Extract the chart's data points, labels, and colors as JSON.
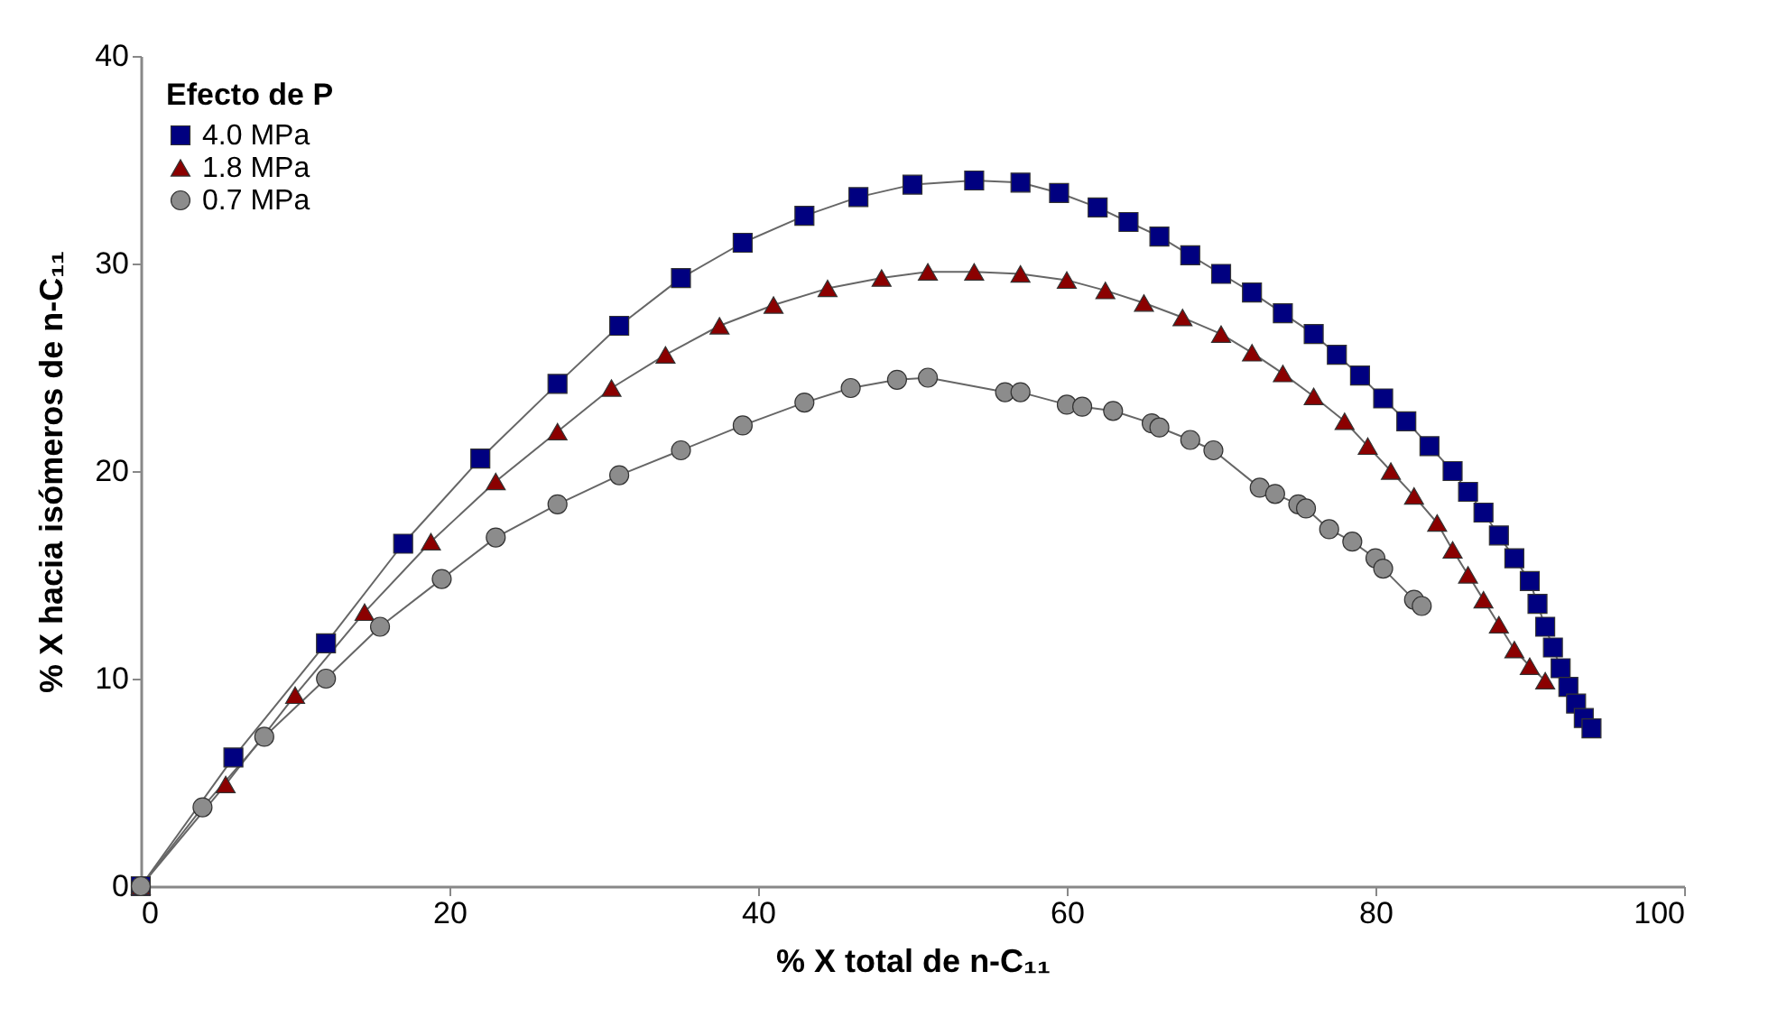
{
  "chart_data": {
    "type": "line",
    "xlabel": "% X total de n-C₁₁",
    "ylabel": "% X hacia isómeros de n-C₁₁",
    "legend_title": "Efecto de P",
    "legend": "top left",
    "grid": false,
    "xlim": [
      0,
      100
    ],
    "xticks": [
      0,
      20,
      40,
      60,
      80,
      100
    ],
    "ylim": [
      0,
      40
    ],
    "yticks": [
      0,
      10,
      20,
      30,
      40
    ],
    "series": [
      {
        "name": "4.0 MPa",
        "color": "#000080",
        "marker": "square",
        "x": [
          0,
          6,
          12,
          17,
          22,
          27,
          31,
          35,
          39,
          43,
          46.5,
          50,
          54,
          57,
          59.5,
          62,
          64,
          66,
          68,
          70,
          72,
          74,
          76,
          77.5,
          79,
          80.5,
          82,
          83.5,
          85,
          86,
          87,
          88,
          89,
          90,
          90.5,
          91,
          91.5,
          92,
          92.5,
          93,
          93.5,
          94
        ],
        "values": [
          0,
          6.2,
          11.7,
          16.5,
          20.6,
          24.2,
          27,
          29.3,
          31,
          32.3,
          33.2,
          33.8,
          34,
          33.9,
          33.4,
          32.7,
          32,
          31.3,
          30.4,
          29.5,
          28.6,
          27.6,
          26.6,
          25.6,
          24.6,
          23.5,
          22.4,
          21.2,
          20,
          19,
          18,
          16.9,
          15.8,
          14.7,
          13.6,
          12.5,
          11.5,
          10.5,
          9.6,
          8.8,
          8.1,
          7.6
        ]
      },
      {
        "name": "1.8 MPa",
        "color": "#8b0000",
        "marker": "triangle",
        "x": [
          0,
          5.5,
          10,
          14.5,
          18.8,
          23,
          27,
          30.5,
          34,
          37.5,
          41,
          44.5,
          48,
          51,
          54,
          57,
          60,
          62.5,
          65,
          67.5,
          70,
          72,
          74,
          76,
          78,
          79.5,
          81,
          82.5,
          84,
          85,
          86,
          87,
          88,
          89,
          90,
          91
        ],
        "values": [
          0,
          4.9,
          9.2,
          13.2,
          16.6,
          19.5,
          21.9,
          24,
          25.6,
          27,
          28,
          28.8,
          29.3,
          29.6,
          29.6,
          29.5,
          29.2,
          28.7,
          28.1,
          27.4,
          26.6,
          25.7,
          24.7,
          23.6,
          22.4,
          21.2,
          20,
          18.8,
          17.5,
          16.2,
          15,
          13.8,
          12.6,
          11.4,
          10.6,
          9.9
        ]
      },
      {
        "name": "0.7 MPa",
        "color": "#8c8c8c",
        "marker": "circle",
        "x": [
          0,
          4,
          8,
          12,
          15.5,
          19.5,
          23,
          27,
          31,
          35,
          39,
          43,
          46,
          49,
          51,
          56,
          57,
          60,
          61,
          63,
          65.5,
          66,
          68,
          69.5,
          72.5,
          73.5,
          75,
          75.5,
          77,
          78.5,
          80,
          80.5,
          82.5,
          83
        ],
        "values": [
          0,
          3.8,
          7.2,
          10,
          12.5,
          14.8,
          16.8,
          18.4,
          19.8,
          21,
          22.2,
          23.3,
          24,
          24.4,
          24.5,
          23.8,
          23.8,
          23.2,
          23.1,
          22.9,
          22.3,
          22.1,
          21.5,
          21,
          19.2,
          18.9,
          18.4,
          18.2,
          17.2,
          16.6,
          15.8,
          15.3,
          13.8,
          13.5
        ]
      }
    ]
  }
}
